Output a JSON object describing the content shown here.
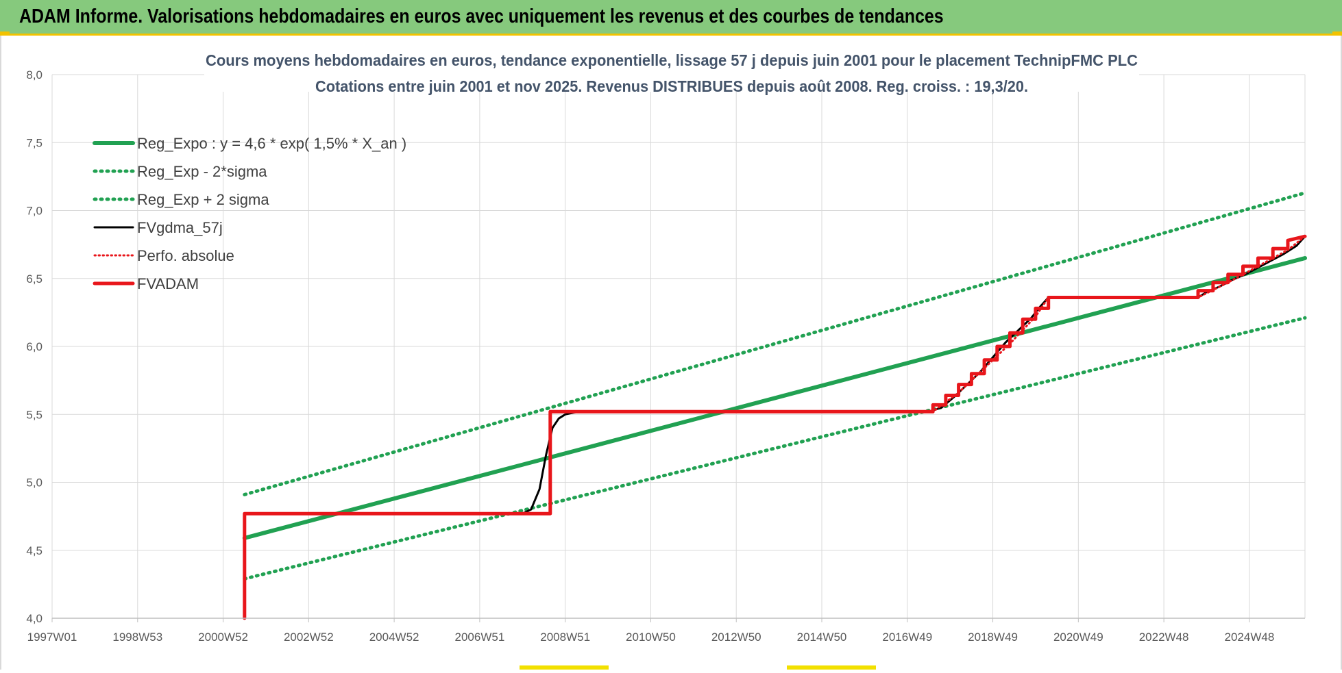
{
  "header": {
    "title": "ADAM Informe. Valorisations hebdomadaires en euros avec uniquement les revenus et des courbes de tendances"
  },
  "chart_data": {
    "type": "line",
    "title": "Cours moyens hebdomadaires en euros, tendance exponentielle, lissage 57 j depuis juin 2001 pour le placement TechnipFMC PLC",
    "subtitle": "Cotations entre juin 2001 et nov 2025.  Revenus DISTRIBUES  depuis août 2008.  Reg. croiss. : 19,3/20.",
    "xlabel": "",
    "ylabel": "",
    "x_domain": [
      1997.0,
      2026.3
    ],
    "ylim": [
      4.0,
      8.0
    ],
    "y_ticks": [
      "4,0",
      "4,5",
      "5,0",
      "5,5",
      "6,0",
      "6,5",
      "7,0",
      "7,5",
      "8,0"
    ],
    "x_ticks": [
      {
        "label": "1997W01",
        "x": 1997.0
      },
      {
        "label": "1998W53",
        "x": 1999.0
      },
      {
        "label": "2000W52",
        "x": 2001.0
      },
      {
        "label": "2002W52",
        "x": 2003.0
      },
      {
        "label": "2004W52",
        "x": 2005.0
      },
      {
        "label": "2006W51",
        "x": 2007.0
      },
      {
        "label": "2008W51",
        "x": 2009.0
      },
      {
        "label": "2010W50",
        "x": 2011.0
      },
      {
        "label": "2012W50",
        "x": 2013.0
      },
      {
        "label": "2014W50",
        "x": 2015.0
      },
      {
        "label": "2016W49",
        "x": 2017.0
      },
      {
        "label": "2018W49",
        "x": 2019.0
      },
      {
        "label": "2020W49",
        "x": 2021.0
      },
      {
        "label": "2022W48",
        "x": 2023.0
      },
      {
        "label": "2024W48",
        "x": 2025.0
      }
    ],
    "grid": true,
    "legend_position": "top-left",
    "series": [
      {
        "name": "Reg_Expo : y = 4,6 * exp( 1,5% *  X_an )",
        "color": "#21a152",
        "style": "solid",
        "x": [
          2001.5,
          2026.3
        ],
        "y": [
          4.59,
          6.65
        ]
      },
      {
        "name": "Reg_Exp - 2*sigma",
        "color": "#21a152",
        "style": "dotted",
        "x": [
          2001.5,
          2026.3
        ],
        "y": [
          4.29,
          6.21
        ]
      },
      {
        "name": "Reg_Exp + 2 sigma",
        "color": "#21a152",
        "style": "dotted",
        "x": [
          2001.5,
          2026.3
        ],
        "y": [
          4.91,
          7.13
        ]
      },
      {
        "name": "FVgdma_57j",
        "color": "#000000",
        "style": "solid",
        "x": [
          2001.5,
          2008.0,
          2008.2,
          2008.4,
          2008.55,
          2008.7,
          2008.85,
          2009.0,
          2009.3,
          2017.5,
          2017.8,
          2018.1,
          2018.4,
          2018.7,
          2019.0,
          2019.3,
          2019.6,
          2019.9,
          2020.1,
          2020.3,
          2023.8,
          2024.0,
          2024.3,
          2024.6,
          2024.9,
          2025.2,
          2025.5,
          2025.8,
          2026.1,
          2026.3
        ],
        "y": [
          4.77,
          4.77,
          4.8,
          4.95,
          5.2,
          5.4,
          5.47,
          5.5,
          5.52,
          5.52,
          5.55,
          5.63,
          5.72,
          5.81,
          5.92,
          6.03,
          6.12,
          6.21,
          6.29,
          6.36,
          6.36,
          6.4,
          6.44,
          6.49,
          6.53,
          6.58,
          6.63,
          6.68,
          6.74,
          6.81
        ]
      },
      {
        "name": "Perfo. absolue",
        "color": "#e8161b",
        "style": "dotted",
        "x": [
          2001.5,
          2008.65,
          2008.65,
          2017.6,
          2018.2,
          2018.8,
          2019.4,
          2020.0,
          2020.3,
          2023.8,
          2024.5,
          2025.2,
          2025.9,
          2026.3
        ],
        "y": [
          4.77,
          4.77,
          5.52,
          5.52,
          5.66,
          5.84,
          6.02,
          6.22,
          6.36,
          6.36,
          6.47,
          6.59,
          6.71,
          6.81
        ]
      },
      {
        "name": "FVADAM",
        "color": "#e8161b",
        "style": "solid",
        "x": [
          2001.5,
          2001.5,
          2008.65,
          2008.65,
          2017.6,
          2017.6,
          2017.9,
          2017.9,
          2018.2,
          2018.2,
          2018.5,
          2018.5,
          2018.8,
          2018.8,
          2019.1,
          2019.1,
          2019.4,
          2019.4,
          2019.7,
          2019.7,
          2020.0,
          2020.0,
          2020.3,
          2020.3,
          2023.8,
          2023.8,
          2024.15,
          2024.15,
          2024.5,
          2024.5,
          2024.85,
          2024.85,
          2025.2,
          2025.2,
          2025.55,
          2025.55,
          2025.9,
          2025.9,
          2026.3
        ],
        "y": [
          4.0,
          4.77,
          4.77,
          5.52,
          5.52,
          5.57,
          5.57,
          5.64,
          5.64,
          5.72,
          5.72,
          5.8,
          5.8,
          5.9,
          5.9,
          6.0,
          6.0,
          6.1,
          6.1,
          6.2,
          6.2,
          6.28,
          6.28,
          6.36,
          6.36,
          6.41,
          6.41,
          6.47,
          6.47,
          6.53,
          6.53,
          6.59,
          6.59,
          6.65,
          6.65,
          6.72,
          6.72,
          6.78,
          6.81
        ]
      }
    ]
  }
}
